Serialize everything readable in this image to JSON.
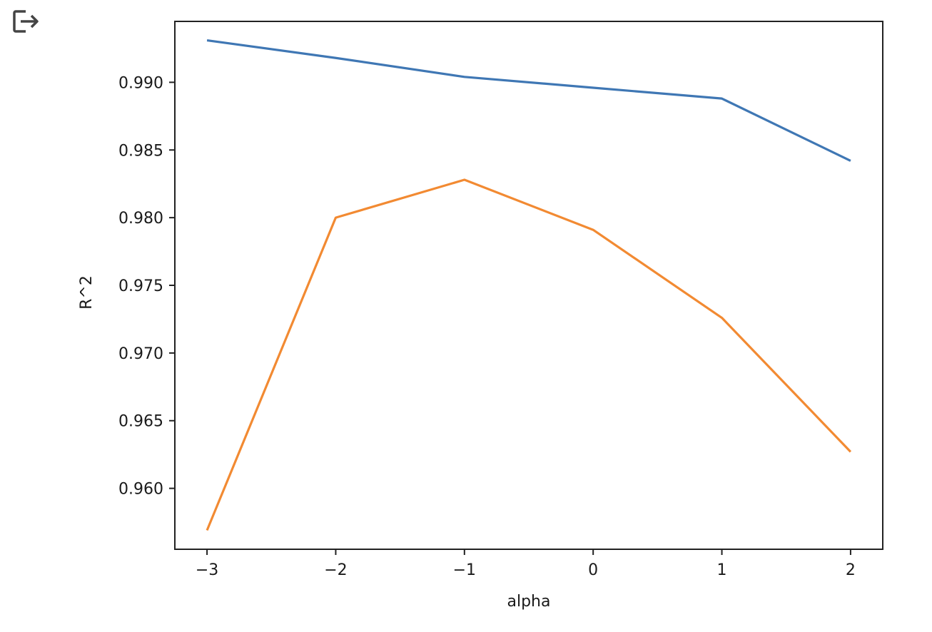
{
  "toolbar": {
    "output_icon": "output-redirect-icon"
  },
  "chart_data": {
    "type": "line",
    "title": "",
    "xlabel": "alpha",
    "ylabel": "R^2",
    "x": [
      -3,
      -2,
      -1,
      0,
      1,
      2
    ],
    "x_ticks": [
      -3,
      -2,
      -1,
      0,
      1,
      2
    ],
    "x_tick_labels": [
      "−3",
      "−2",
      "−1",
      "0",
      "1",
      "2"
    ],
    "y_ticks": [
      0.96,
      0.965,
      0.97,
      0.975,
      0.98,
      0.985,
      0.99
    ],
    "y_tick_labels": [
      "0.960",
      "0.965",
      "0.970",
      "0.975",
      "0.980",
      "0.985",
      "0.990"
    ],
    "xlim": [
      -3.25,
      2.25
    ],
    "ylim": [
      0.9555,
      0.9945
    ],
    "grid": false,
    "series": [
      {
        "color": "#3f77b4",
        "values": [
          0.9931,
          0.9918,
          0.9904,
          0.9896,
          0.9888,
          0.9842
        ]
      },
      {
        "color": "#f28a32",
        "values": [
          0.9569,
          0.98,
          0.9828,
          0.9791,
          0.9726,
          0.9627
        ]
      }
    ]
  }
}
